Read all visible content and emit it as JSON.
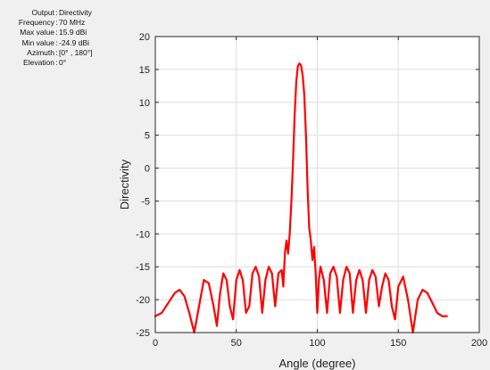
{
  "info_panel": [
    {
      "key": "Output",
      "value": "Directivity"
    },
    {
      "key": "Frequency",
      "value": "70 MHz"
    },
    {
      "key": "Max value",
      "value": "15.9 dBi"
    },
    {
      "key": "Min value",
      "value": "-24.9 dBi"
    },
    {
      "key": "Azimuth",
      "value": "[0° , 180°]"
    },
    {
      "key": "Elevation",
      "value": "0°"
    }
  ],
  "chart_data": {
    "type": "line",
    "title": "",
    "xlabel": "Angle (degree)",
    "ylabel": "Directivity",
    "xlim": [
      0,
      200
    ],
    "ylim": [
      -25,
      20
    ],
    "x_ticks": [
      0,
      50,
      100,
      150,
      200
    ],
    "y_ticks": [
      20,
      15,
      10,
      5,
      0,
      -5,
      -10,
      -15,
      -20,
      -25
    ],
    "grid": true,
    "legend": "none",
    "series": [
      {
        "color": "#ff0000",
        "x": [
          0,
          4,
          8,
          12,
          15,
          18,
          21,
          24,
          27,
          30,
          33,
          36,
          38,
          40,
          42,
          44,
          46,
          48,
          50,
          52,
          54,
          56,
          58,
          60,
          62,
          64,
          66,
          68,
          70,
          72,
          74,
          76,
          78,
          79,
          80,
          81,
          82,
          83,
          84,
          85,
          86,
          87,
          88,
          89,
          90,
          91,
          92,
          93,
          94,
          95,
          96,
          97,
          98,
          99,
          100,
          101,
          102,
          104,
          106,
          108,
          110,
          112,
          114,
          116,
          118,
          120,
          122,
          124,
          126,
          128,
          130,
          132,
          134,
          136,
          138,
          140,
          142,
          144,
          146,
          148,
          150,
          153,
          156,
          159,
          162,
          165,
          168,
          171,
          174,
          177,
          180
        ],
        "y": [
          -22.5,
          -22,
          -20.5,
          -19,
          -18.5,
          -19.5,
          -22,
          -25,
          -21,
          -17,
          -17.5,
          -21,
          -24,
          -19,
          -16,
          -17,
          -21,
          -23,
          -17,
          -15.5,
          -17,
          -22,
          -21,
          -16,
          -15,
          -16.5,
          -22,
          -17,
          -15,
          -16,
          -21,
          -16,
          -15.5,
          -18,
          -13,
          -11,
          -13,
          -10,
          -5,
          1,
          8,
          13,
          15.5,
          15.9,
          15.6,
          14,
          11,
          5,
          -3,
          -9,
          -11,
          -14,
          -12,
          -16,
          -22,
          -17,
          -15,
          -17,
          -22,
          -16,
          -15,
          -16.5,
          -22,
          -17,
          -15,
          -16,
          -22,
          -17,
          -15.5,
          -17,
          -22,
          -17,
          -15.5,
          -16.5,
          -21,
          -18,
          -16,
          -17,
          -21,
          -23,
          -18,
          -16.5,
          -20,
          -25,
          -20,
          -18.5,
          -19,
          -20.5,
          -22,
          -22.5,
          -22.5
        ]
      }
    ]
  }
}
